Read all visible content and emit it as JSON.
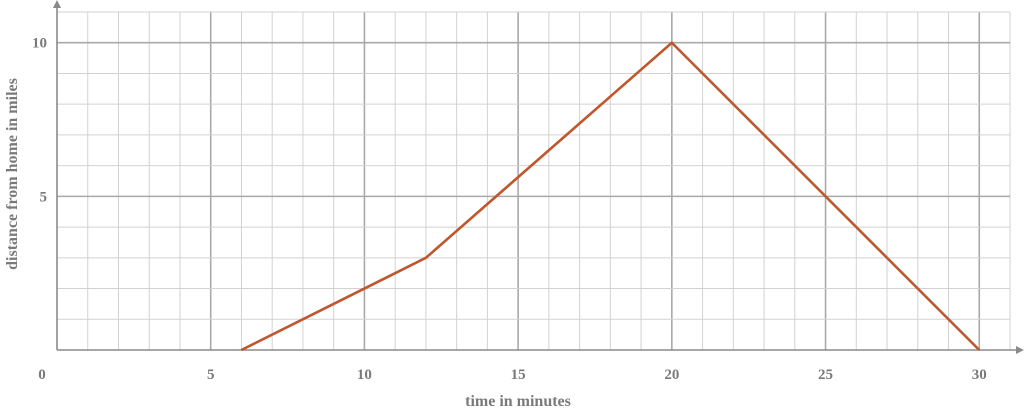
{
  "chart_data": {
    "type": "line",
    "title": "",
    "xlabel": "time in minutes",
    "ylabel": "distance from home in miles",
    "xlim": [
      0,
      31
    ],
    "ylim": [
      0,
      11
    ],
    "x_ticks": [
      0,
      5,
      10,
      15,
      20,
      25,
      30
    ],
    "x_tick_labels": [
      "0",
      "5",
      "10",
      "15",
      "20",
      "25",
      "30"
    ],
    "y_ticks": [
      5,
      10
    ],
    "y_tick_labels": [
      "5",
      "10"
    ],
    "grid": true,
    "minor_grid_step": 1,
    "major_grid_step": 5,
    "series": [
      {
        "color": "#c0562a",
        "points": [
          {
            "x": 6,
            "y": 0
          },
          {
            "x": 12,
            "y": 3
          },
          {
            "x": 20,
            "y": 10
          },
          {
            "x": 30,
            "y": 0
          }
        ]
      }
    ]
  }
}
